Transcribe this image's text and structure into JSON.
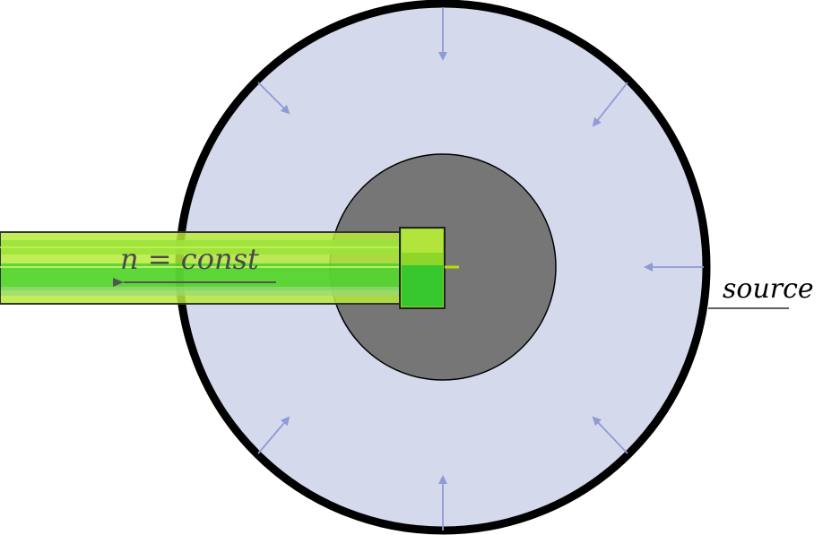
{
  "labels": {
    "beam_equation": "n = const",
    "source": "source"
  },
  "colors": {
    "outer_ring": "#000000",
    "source_region": "#d5d9ec",
    "core": "#767676",
    "beam": "#8ff000",
    "beam_dark": "#2ecc2e",
    "arrows": "#8f9bd6",
    "label_text": "#4a4a4a"
  },
  "icons": [
    "inward-arrow-icon",
    "beam-arrow-icon"
  ]
}
